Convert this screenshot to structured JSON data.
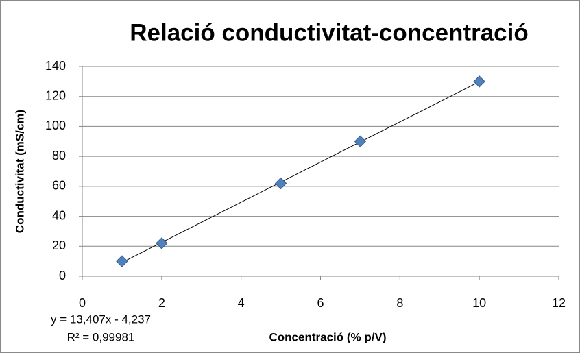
{
  "chart_data": {
    "type": "scatter",
    "title": "Relació conductivitat-concentració",
    "x_label": "Concentració (% p/V)",
    "y_label": "Conductivitat (mS/cm)",
    "series": [
      {
        "name": "Conductivitat",
        "color": "#4f81bd",
        "x": [
          1,
          2,
          5,
          7,
          10
        ],
        "values": [
          10,
          22,
          62,
          90,
          130
        ]
      }
    ],
    "trendline": {
      "slope": 13.407,
      "intercept": -4.237,
      "equation": "y = 13,407x - 4,237",
      "r2": "R² = 0,99981"
    },
    "xlim": [
      0,
      12
    ],
    "xticks": [
      0,
      2,
      4,
      6,
      8,
      10,
      12
    ],
    "ylim": [
      0,
      140
    ],
    "yticks": [
      0,
      20,
      40,
      60,
      80,
      100,
      120,
      140
    ],
    "grid": true
  }
}
